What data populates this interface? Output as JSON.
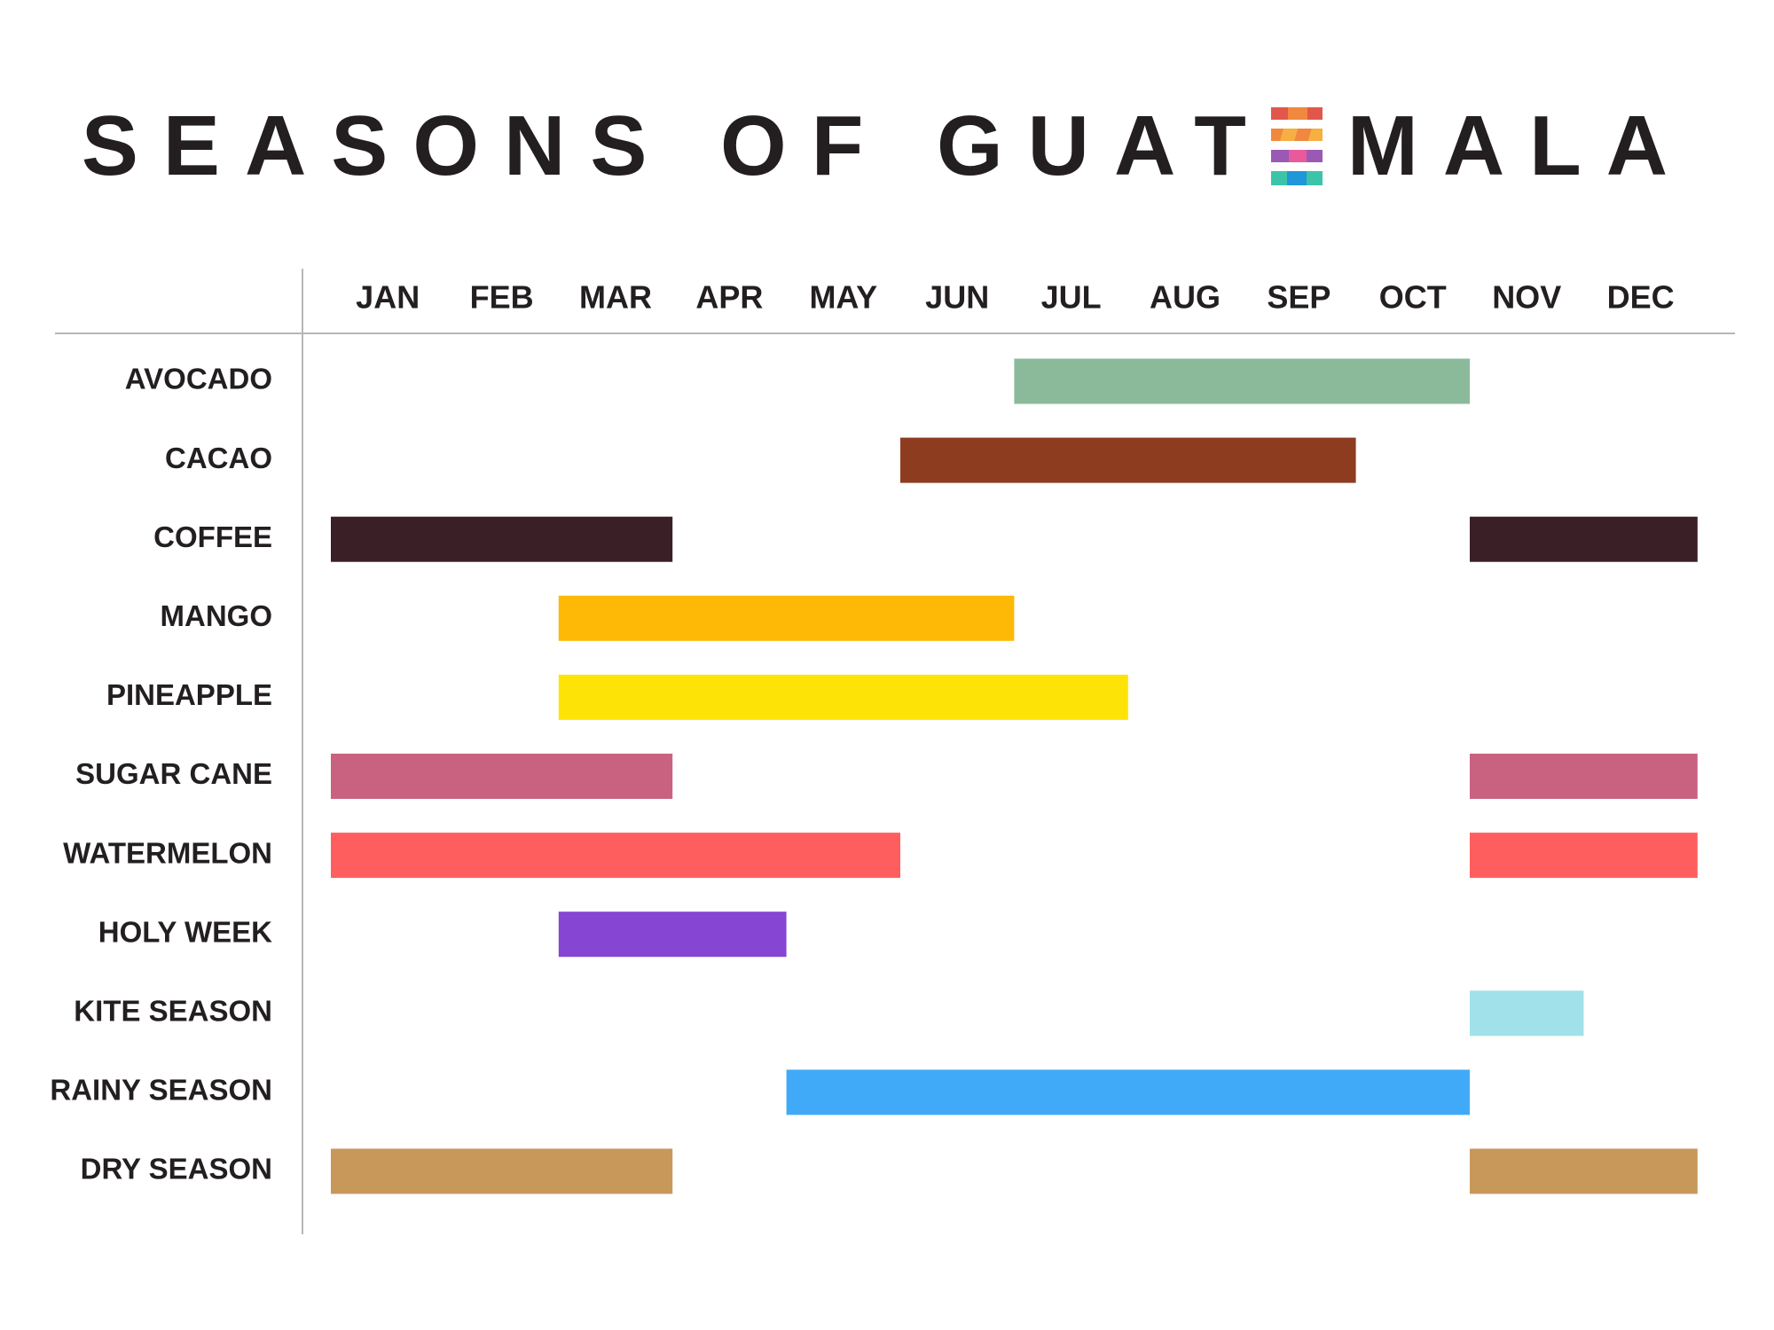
{
  "title": {
    "before_flag": "SEASONS OF GUAT",
    "after_flag": "MALA",
    "flag_icon": "guatemala-textile-e-icon",
    "flag_colors": [
      "#e2574c",
      "#f0883e",
      "#f5b041",
      "#e95a9c",
      "#9b59b6",
      "#3cc4a8",
      "#2196d9"
    ]
  },
  "chart_data": {
    "type": "gantt",
    "months": [
      "JAN",
      "FEB",
      "MAR",
      "APR",
      "MAY",
      "JUN",
      "JUL",
      "AUG",
      "SEP",
      "OCT",
      "NOV",
      "DEC"
    ],
    "rows": [
      {
        "label": "AVOCADO",
        "color": "#8aba9a",
        "periods": [
          {
            "start": "JUL",
            "end": "OCT"
          }
        ]
      },
      {
        "label": "CACAO",
        "color": "#8e3c20",
        "periods": [
          {
            "start": "JUN",
            "end": "SEP"
          }
        ]
      },
      {
        "label": "COFFEE",
        "color": "#3a1f27",
        "periods": [
          {
            "start": "JAN",
            "end": "MAR"
          },
          {
            "start": "NOV",
            "end": "DEC"
          }
        ]
      },
      {
        "label": "MANGO",
        "color": "#feb806",
        "periods": [
          {
            "start": "MAR",
            "end": "JUN"
          }
        ]
      },
      {
        "label": "PINEAPPLE",
        "color": "#fee307",
        "periods": [
          {
            "start": "MAR",
            "end": "JUL"
          }
        ]
      },
      {
        "label": "SUGAR CANE",
        "color": "#c96280",
        "periods": [
          {
            "start": "JAN",
            "end": "MAR"
          },
          {
            "start": "NOV",
            "end": "DEC"
          }
        ]
      },
      {
        "label": "WATERMELON",
        "color": "#ff5e5e",
        "periods": [
          {
            "start": "JAN",
            "end": "MAY"
          },
          {
            "start": "NOV",
            "end": "DEC"
          }
        ]
      },
      {
        "label": "HOLY WEEK",
        "color": "#8745d3",
        "periods": [
          {
            "start": "MAR",
            "end": "APR"
          }
        ]
      },
      {
        "label": "KITE SEASON",
        "color": "#a0e1ea",
        "periods": [
          {
            "start": "NOV",
            "end": "NOV"
          }
        ]
      },
      {
        "label": "RAINY SEASON",
        "color": "#41aaf8",
        "periods": [
          {
            "start": "MAY",
            "end": "OCT"
          }
        ]
      },
      {
        "label": "DRY SEASON",
        "color": "#c8985b",
        "periods": [
          {
            "start": "JAN",
            "end": "MAR"
          },
          {
            "start": "NOV",
            "end": "DEC"
          }
        ]
      }
    ],
    "grid": false,
    "legend": "none"
  }
}
